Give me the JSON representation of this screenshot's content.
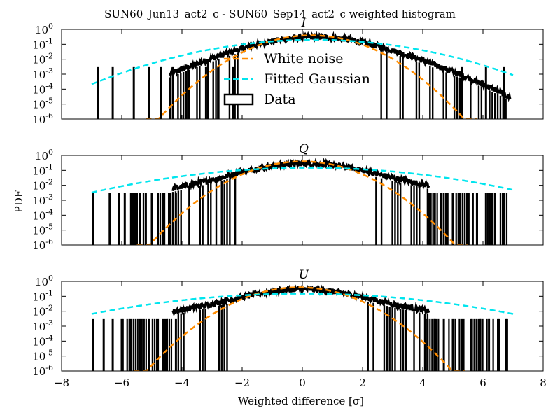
{
  "chart_data": {
    "type": "histogram",
    "title": "SUN60_Jun13_act2_c - SUN60_Sep14_act2_c weighted histogram",
    "xlabel": "Weighted difference [σ]",
    "ylabel": "PDF",
    "xlim": [
      -8,
      8
    ],
    "ylim": [
      1e-06,
      1
    ],
    "yscale": "log",
    "x_ticks": [
      "−8",
      "−6",
      "−4",
      "−2",
      "0",
      "2",
      "4",
      "6",
      "8"
    ],
    "y_ticks": [
      {
        "base": "10",
        "exp": "0",
        "value": 1
      },
      {
        "base": "10",
        "exp": "-1",
        "value": 0.1
      },
      {
        "base": "10",
        "exp": "-2",
        "value": 0.01
      },
      {
        "base": "10",
        "exp": "-3",
        "value": 0.001
      },
      {
        "base": "10",
        "exp": "-4",
        "value": 0.0001
      },
      {
        "base": "10",
        "exp": "-5",
        "value": 1e-05
      },
      {
        "base": "10",
        "exp": "-6",
        "value": 1e-06
      }
    ],
    "legend": {
      "placement": "inside first panel, center",
      "entries": [
        {
          "label": "White noise",
          "color": "#ff8c00",
          "style": "dashed"
        },
        {
          "label": "Fitted Gaussian",
          "color": "#00e5ee",
          "style": "dashed"
        },
        {
          "label": "Data",
          "color": "#000000",
          "style": "box"
        }
      ]
    },
    "panels": [
      {
        "name": "I",
        "white_noise": {
          "mean": 0.3,
          "sigma": 1.0,
          "amp": 0.4
        },
        "fitted_gaussian": {
          "mean": 0.4,
          "sigma": 2.0,
          "amp": 0.2,
          "x_range": [
            -7,
            7
          ]
        },
        "data": {
          "x_range": [
            -7,
            7
          ],
          "sparse_points": [
            [
              -6.8,
              0.003
            ],
            [
              -6.3,
              0.003
            ],
            [
              -5.6,
              0.003
            ],
            [
              -5.1,
              0.003
            ],
            [
              -4.7,
              0.003
            ],
            [
              -4.3,
              0.003
            ],
            [
              -3.8,
              0.003
            ],
            [
              -3.2,
              0.003
            ],
            [
              -2.8,
              0.003
            ],
            [
              -2.3,
              0.003
            ],
            [
              5.3,
              0.003
            ],
            [
              6.1,
              0.003
            ],
            [
              6.7,
              0.003
            ]
          ]
        }
      },
      {
        "name": "Q",
        "white_noise": {
          "mean": 0.0,
          "sigma": 1.0,
          "amp": 0.4
        },
        "fitted_gaussian": {
          "mean": 0.2,
          "sigma": 2.6,
          "amp": 0.15,
          "x_range": [
            -7,
            7
          ]
        },
        "data": {
          "x_range": [
            -7,
            7
          ],
          "sparse_points": [
            [
              -6.95,
              0.003
            ],
            [
              -6.4,
              0.003
            ],
            [
              -6.1,
              0.003
            ],
            [
              -5.9,
              0.003
            ],
            [
              -5.6,
              0.003
            ],
            [
              -5.4,
              0.003
            ],
            [
              -5.2,
              0.003
            ],
            [
              -5.0,
              0.003
            ],
            [
              -4.8,
              0.003
            ],
            [
              -4.6,
              0.003
            ],
            [
              -4.4,
              0.003
            ],
            [
              -4.2,
              0.003
            ],
            [
              4.2,
              0.003
            ],
            [
              4.4,
              0.003
            ],
            [
              4.6,
              0.003
            ],
            [
              4.8,
              0.003
            ],
            [
              5.0,
              0.003
            ],
            [
              5.2,
              0.003
            ],
            [
              5.5,
              0.003
            ],
            [
              5.8,
              0.003
            ],
            [
              6.1,
              0.003
            ],
            [
              6.4,
              0.003
            ],
            [
              6.7,
              0.003
            ]
          ]
        }
      },
      {
        "name": "U",
        "white_noise": {
          "mean": -0.1,
          "sigma": 1.0,
          "amp": 0.4
        },
        "fitted_gaussian": {
          "mean": 0.0,
          "sigma": 2.8,
          "amp": 0.15,
          "x_range": [
            -7,
            7
          ]
        },
        "data": {
          "x_range": [
            -7,
            7
          ],
          "sparse_points": [
            [
              -6.95,
              0.003
            ],
            [
              -6.6,
              0.003
            ],
            [
              -6.3,
              0.003
            ],
            [
              -6.0,
              0.003
            ],
            [
              -5.7,
              0.003
            ],
            [
              -5.4,
              0.003
            ],
            [
              -5.1,
              0.003
            ],
            [
              -4.8,
              0.003
            ],
            [
              -4.5,
              0.003
            ],
            [
              -4.2,
              0.003
            ],
            [
              4.1,
              0.003
            ],
            [
              4.4,
              0.003
            ],
            [
              4.7,
              0.003
            ],
            [
              5.0,
              0.003
            ],
            [
              5.3,
              0.003
            ],
            [
              5.6,
              0.003
            ],
            [
              5.9,
              0.003
            ],
            [
              6.2,
              0.003
            ],
            [
              6.5,
              0.003
            ],
            [
              6.8,
              0.003
            ]
          ]
        }
      }
    ]
  }
}
